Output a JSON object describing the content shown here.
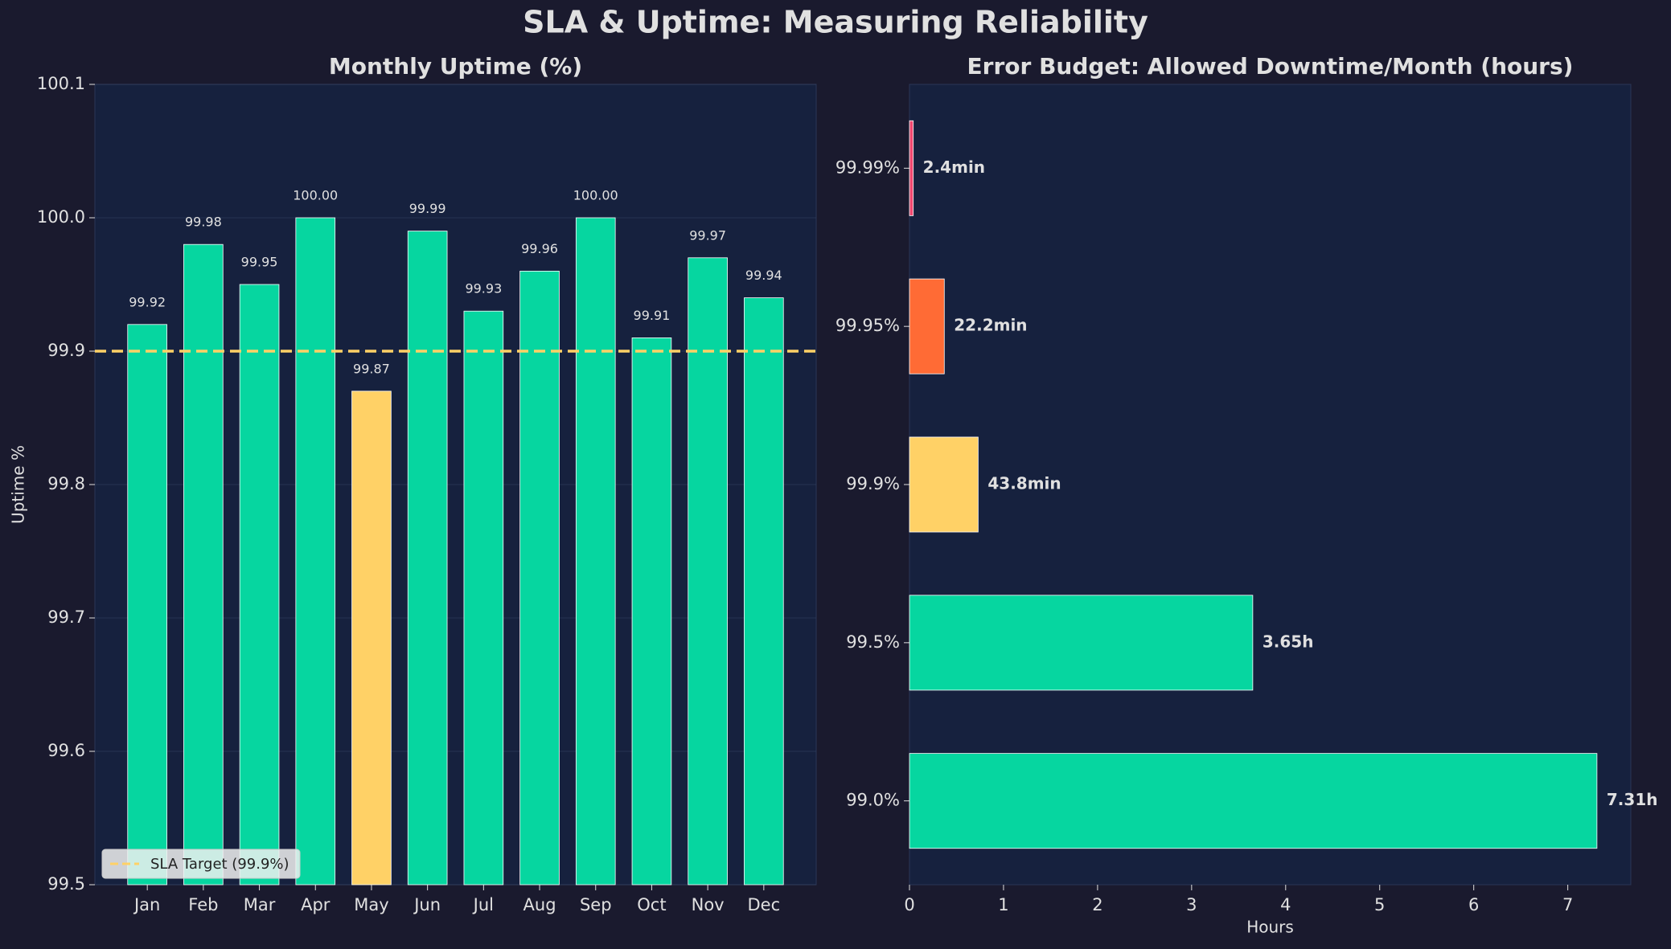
{
  "title": "SLA & Uptime: Measuring Reliability",
  "chart_data": [
    {
      "type": "bar",
      "title": "Monthly Uptime (%)",
      "ylabel": "Uptime %",
      "categories": [
        "Jan",
        "Feb",
        "Mar",
        "Apr",
        "May",
        "Jun",
        "Jul",
        "Aug",
        "Sep",
        "Oct",
        "Nov",
        "Dec"
      ],
      "values": [
        99.92,
        99.98,
        99.95,
        100.0,
        99.87,
        99.99,
        99.93,
        99.96,
        100.0,
        99.91,
        99.97,
        99.94
      ],
      "value_labels": [
        "99.92",
        "99.98",
        "99.95",
        "100.00",
        "99.87",
        "99.99",
        "99.93",
        "99.96",
        "100.00",
        "99.91",
        "99.97",
        "99.94"
      ],
      "colors": [
        "#06d6a0",
        "#06d6a0",
        "#06d6a0",
        "#06d6a0",
        "#ffd166",
        "#06d6a0",
        "#06d6a0",
        "#06d6a0",
        "#06d6a0",
        "#06d6a0",
        "#06d6a0",
        "#06d6a0"
      ],
      "ylim": [
        99.5,
        100.1
      ],
      "yticks": [
        99.5,
        99.6,
        99.7,
        99.8,
        99.9,
        {
          "value": 100,
          "label": "100.0"
        },
        100.1
      ],
      "grid": true,
      "reference_line": {
        "value": 99.9,
        "name": "SLA Target (99.9%)",
        "color": "#ffd166"
      },
      "legend": "lower left"
    },
    {
      "type": "barh",
      "title": "Error Budget: Allowed Downtime/Month (hours)",
      "xlabel": "Hours",
      "categories": [
        "99.99%",
        "99.95%",
        "99.9%",
        "99.5%",
        "99.0%"
      ],
      "values": [
        0.04,
        0.37,
        0.73,
        3.65,
        7.31
      ],
      "value_labels": [
        "2.4min",
        "22.2min",
        "43.8min",
        "3.65h",
        "7.31h"
      ],
      "colors": [
        "#ef476f",
        "#ff6b35",
        "#ffd166",
        "#06d6a0",
        "#06d6a0"
      ],
      "xlim": [
        0,
        7.67
      ],
      "xticks": [
        0,
        1,
        2,
        3,
        4,
        5,
        6,
        7
      ],
      "grid": false
    }
  ]
}
